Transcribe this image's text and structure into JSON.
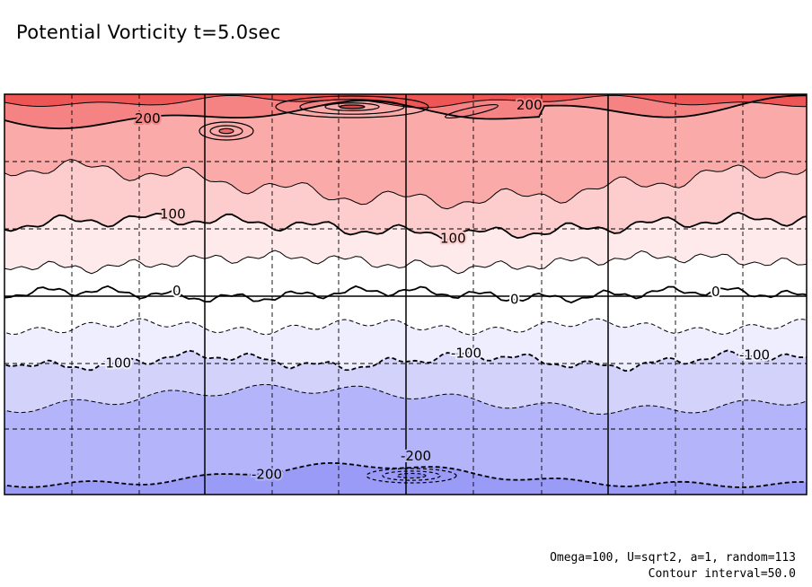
{
  "chart_data": {
    "type": "contour",
    "title": "Potential Vorticity t=5.0sec",
    "grid": true,
    "contour_levels": [
      250,
      200,
      150,
      100,
      50,
      0,
      -50,
      -100,
      -150,
      -200,
      -250
    ],
    "labeled_contours": [
      {
        "value": 200,
        "label": "200"
      },
      {
        "value": 100,
        "label": "100"
      },
      {
        "value": 0,
        "label": "0"
      },
      {
        "value": -100,
        "label": "-100"
      },
      {
        "value": -200,
        "label": "-200"
      }
    ],
    "band_colors": {
      "above_250": "#ee5555",
      "200_250": "#f58383",
      "150_200": "#fbaaaa",
      "100_150": "#fdcccc",
      "50_100": "#feeaea",
      "0_50": "#ffffff",
      "-50_0": "#ffffff",
      "-100_-50": "#eeeeff",
      "-150_-100": "#d2d2fb",
      "-200_-150": "#b4b4fa",
      "below_-200": "#9a9af7"
    }
  },
  "footnotes": {
    "params": "Omega=100, U=sqrt2, a=1, random=113",
    "interval": "Contour interval=50.0"
  }
}
